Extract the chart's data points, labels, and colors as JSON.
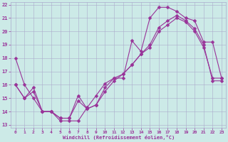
{
  "xlabel": "Windchill (Refroidissement éolien,°C)",
  "bg_color": "#cceae7",
  "grid_color": "#aaaacc",
  "line_color": "#993399",
  "x_ticks": [
    0,
    1,
    2,
    3,
    4,
    5,
    6,
    7,
    8,
    9,
    10,
    11,
    12,
    13,
    14,
    15,
    16,
    17,
    18,
    19,
    20,
    21,
    22,
    23
  ],
  "y_ticks": [
    13,
    14,
    15,
    16,
    17,
    18,
    19,
    20,
    21,
    22
  ],
  "xlim": [
    -0.5,
    23.5
  ],
  "ylim": [
    12.8,
    22.2
  ],
  "series1_x": [
    0,
    1,
    2,
    3,
    4,
    5,
    6,
    7,
    8,
    9,
    10,
    11,
    12,
    13,
    14,
    15,
    16,
    17,
    18,
    19,
    20,
    21,
    22,
    23
  ],
  "series1_y": [
    18.0,
    16.0,
    15.0,
    14.0,
    14.0,
    13.3,
    13.3,
    13.3,
    14.3,
    15.2,
    16.1,
    16.5,
    16.5,
    19.3,
    18.5,
    21.0,
    21.8,
    21.8,
    21.5,
    21.0,
    20.8,
    19.2,
    19.2,
    16.5
  ],
  "series2_x": [
    0,
    1,
    2,
    3,
    4,
    5,
    6,
    7,
    8,
    9,
    10,
    11,
    12,
    13,
    14,
    15,
    16,
    17,
    18,
    19,
    20,
    21,
    22,
    23
  ],
  "series2_y": [
    16.0,
    15.0,
    15.8,
    14.0,
    14.0,
    13.5,
    13.5,
    15.2,
    14.2,
    14.5,
    15.8,
    16.5,
    16.8,
    17.5,
    18.3,
    19.0,
    20.3,
    20.8,
    21.2,
    20.8,
    20.2,
    19.0,
    16.3,
    16.3
  ],
  "series3_x": [
    0,
    1,
    2,
    3,
    4,
    5,
    6,
    7,
    8,
    9,
    10,
    11,
    12,
    13,
    14,
    15,
    16,
    17,
    18,
    19,
    20,
    21,
    22,
    23
  ],
  "series3_y": [
    16.0,
    15.0,
    15.5,
    14.0,
    14.0,
    13.5,
    13.5,
    14.8,
    14.2,
    14.5,
    15.5,
    16.3,
    16.8,
    17.5,
    18.3,
    18.8,
    20.0,
    20.5,
    21.0,
    20.7,
    20.0,
    18.8,
    16.5,
    16.5
  ]
}
